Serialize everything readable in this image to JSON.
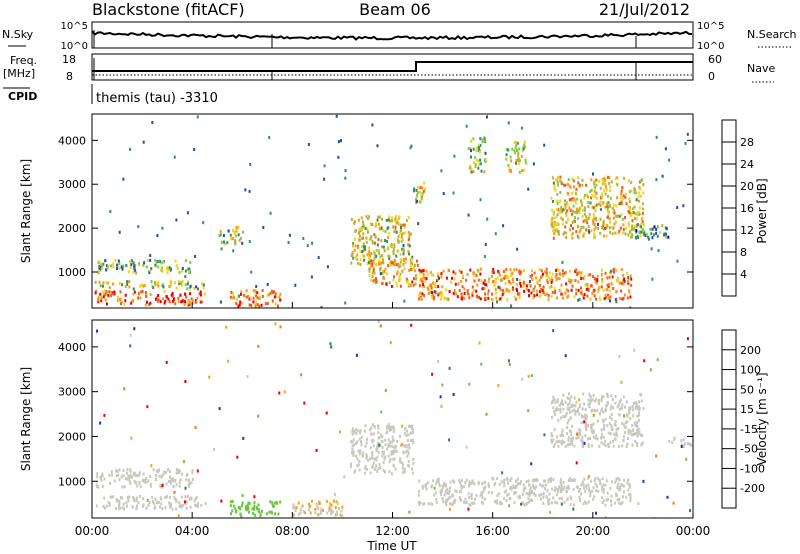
{
  "header": {
    "station": "Blackstone (fitACF)",
    "beam": "Beam 06",
    "date": "21/Jul/2012"
  },
  "summary": {
    "nsky_label": "N.Sky",
    "nsky_ticks": [
      "10^5",
      "10^0"
    ],
    "nsearch_label": "N.Search",
    "freq_label": "Freq.",
    "freq_unit": "[MHz]",
    "freq_ticks": [
      "18",
      "8"
    ],
    "nave_label": "Nave",
    "nave_ticks": [
      "60",
      "0"
    ],
    "cpid_label": "CPID",
    "cpid_text": "themis (tau) -3310"
  },
  "panels": {
    "power": {
      "ylabel": "Slant Range [km]",
      "yticks": [
        "4000",
        "3000",
        "2000",
        "1000"
      ],
      "colorbar_label": "Power [dB]",
      "colorbar_ticks": [
        "28",
        "24",
        "20",
        "16",
        "12",
        "8",
        "4"
      ]
    },
    "velocity": {
      "ylabel": "Slant Range [km]",
      "yticks": [
        "4000",
        "3000",
        "2000",
        "1000"
      ],
      "colorbar_label": "Velocity [m s⁻¹]",
      "colorbar_ticks": [
        "200",
        "100",
        "50",
        "15",
        "-15",
        "-50",
        "-100",
        "-200"
      ]
    }
  },
  "xaxis": {
    "label": "Time UT",
    "ticks": [
      "00:00",
      "04:00",
      "08:00",
      "12:00",
      "16:00",
      "20:00",
      "00:00"
    ]
  },
  "colors": {
    "power_scale": [
      "#0000e6",
      "#1f4fa8",
      "#2f8f6a",
      "#8cc63f",
      "#f2d21e",
      "#f59b1b",
      "#ef5b1c",
      "#e60000"
    ],
    "velocity_scale": [
      "#1c2fd0",
      "#2e7d5a",
      "#67c83c",
      "#c8c8be",
      "#f6a21c",
      "#f07e10",
      "#e60000"
    ]
  },
  "chart_data": [
    {
      "type": "heatmap",
      "name": "Power",
      "x_range_hours": [
        0,
        24
      ],
      "y_range_km": [
        180,
        4600
      ],
      "clim": [
        0,
        30
      ],
      "regions": [
        {
          "t": [
            0.1,
            4.5
          ],
          "r": [
            280,
            600
          ],
          "value": 24
        },
        {
          "t": [
            0.1,
            4.5
          ],
          "r": [
            650,
            820
          ],
          "value": 14
        },
        {
          "t": [
            0.1,
            4.0
          ],
          "r": [
            1000,
            1300
          ],
          "value": 12
        },
        {
          "t": [
            5.0,
            6.0
          ],
          "r": [
            1650,
            2050
          ],
          "value": 14
        },
        {
          "t": [
            5.5,
            7.5
          ],
          "r": [
            250,
            620
          ],
          "value": 22
        },
        {
          "t": [
            10.3,
            12.8
          ],
          "r": [
            1200,
            2300
          ],
          "value": 16
        },
        {
          "t": [
            11.0,
            13.0
          ],
          "r": [
            700,
            1300
          ],
          "value": 20
        },
        {
          "t": [
            12.8,
            13.4
          ],
          "r": [
            2600,
            3100
          ],
          "value": 16
        },
        {
          "t": [
            13.0,
            21.5
          ],
          "r": [
            400,
            1100
          ],
          "value": 22
        },
        {
          "t": [
            15.0,
            15.7
          ],
          "r": [
            3300,
            4100
          ],
          "value": 14
        },
        {
          "t": [
            16.5,
            17.3
          ],
          "r": [
            3300,
            4000
          ],
          "value": 16
        },
        {
          "t": [
            18.3,
            22.0
          ],
          "r": [
            1800,
            3200
          ],
          "value": 18
        },
        {
          "t": [
            21.5,
            23.0
          ],
          "r": [
            1800,
            2100
          ],
          "value": 10
        }
      ]
    },
    {
      "type": "heatmap",
      "name": "Velocity",
      "x_range_hours": [
        0,
        24
      ],
      "y_range_km": [
        180,
        4600
      ],
      "clim": [
        -250,
        250
      ],
      "regions": [
        {
          "t": [
            0.1,
            4.5
          ],
          "r": [
            400,
            700
          ],
          "value": 0
        },
        {
          "t": [
            0.1,
            4.0
          ],
          "r": [
            900,
            1300
          ],
          "value": 0
        },
        {
          "t": [
            5.5,
            7.5
          ],
          "r": [
            250,
            600
          ],
          "value": -60
        },
        {
          "t": [
            8.0,
            10.0
          ],
          "r": [
            250,
            600
          ],
          "value": 30
        },
        {
          "t": [
            10.3,
            12.8
          ],
          "r": [
            1200,
            2300
          ],
          "value": 0
        },
        {
          "t": [
            13.0,
            21.5
          ],
          "r": [
            500,
            1100
          ],
          "value": 0
        },
        {
          "t": [
            18.3,
            22.0
          ],
          "r": [
            1800,
            3000
          ],
          "value": 0
        },
        {
          "t": [
            23.0,
            24.0
          ],
          "r": [
            1800,
            2000
          ],
          "value": 0
        }
      ]
    }
  ]
}
